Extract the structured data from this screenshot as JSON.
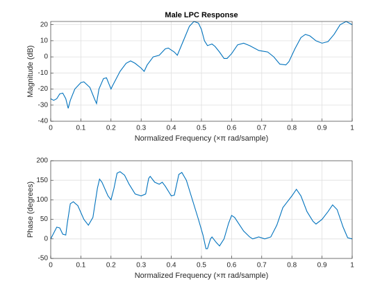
{
  "chart_data": [
    {
      "type": "line",
      "title": "Male LPC Response",
      "xlabel": "Normalized Frequency  (×π rad/sample)",
      "ylabel": "Magnitude (dB)",
      "x": [
        0,
        0.01,
        0.02,
        0.03,
        0.04,
        0.05,
        0.058,
        0.065,
        0.08,
        0.1,
        0.11,
        0.13,
        0.145,
        0.152,
        0.16,
        0.175,
        0.185,
        0.2,
        0.205,
        0.23,
        0.25,
        0.265,
        0.28,
        0.3,
        0.31,
        0.32,
        0.34,
        0.36,
        0.38,
        0.39,
        0.41,
        0.42,
        0.44,
        0.46,
        0.475,
        0.49,
        0.5,
        0.51,
        0.52,
        0.535,
        0.545,
        0.56,
        0.575,
        0.585,
        0.6,
        0.62,
        0.64,
        0.66,
        0.69,
        0.72,
        0.74,
        0.76,
        0.78,
        0.79,
        0.81,
        0.83,
        0.845,
        0.86,
        0.88,
        0.9,
        0.92,
        0.94,
        0.96,
        0.98,
        1.0
      ],
      "values": [
        -26,
        -27,
        -26,
        -23,
        -22.5,
        -26,
        -32,
        -27,
        -20,
        -16,
        -15.5,
        -19,
        -26,
        -29,
        -20,
        -13.5,
        -13,
        -20,
        -18,
        -9,
        -4,
        -2.5,
        -4,
        -7,
        -9,
        -5,
        0,
        1,
        5,
        5.5,
        3,
        1,
        10,
        19,
        22,
        21,
        17,
        10,
        7,
        8,
        6.5,
        3,
        -1,
        -1,
        2,
        7.5,
        8.5,
        7,
        4,
        3,
        0,
        -4.5,
        -5,
        -3,
        5,
        12,
        14,
        13,
        10,
        8.5,
        9.5,
        14,
        20,
        22,
        20
      ],
      "color": "#0072bd",
      "xlim": [
        0,
        1
      ],
      "ylim": [
        -40,
        22
      ],
      "xticks": [
        0,
        0.1,
        0.2,
        0.3,
        0.4,
        0.5,
        0.6,
        0.7,
        0.8,
        0.9,
        1
      ],
      "yticks": [
        -40,
        -30,
        -20,
        -10,
        0,
        10,
        20
      ],
      "grid": true
    },
    {
      "type": "line",
      "xlabel": "Normalized Frequency  (×π rad/sample)",
      "ylabel": "Phase (degrees)",
      "x": [
        0,
        0.01,
        0.02,
        0.03,
        0.04,
        0.05,
        0.055,
        0.065,
        0.075,
        0.09,
        0.11,
        0.125,
        0.14,
        0.155,
        0.162,
        0.17,
        0.19,
        0.2,
        0.21,
        0.22,
        0.23,
        0.245,
        0.26,
        0.28,
        0.3,
        0.315,
        0.325,
        0.33,
        0.345,
        0.36,
        0.37,
        0.38,
        0.4,
        0.41,
        0.425,
        0.435,
        0.45,
        0.47,
        0.49,
        0.505,
        0.515,
        0.52,
        0.53,
        0.535,
        0.55,
        0.56,
        0.575,
        0.59,
        0.6,
        0.61,
        0.64,
        0.66,
        0.67,
        0.69,
        0.71,
        0.73,
        0.75,
        0.77,
        0.785,
        0.8,
        0.815,
        0.83,
        0.85,
        0.87,
        0.88,
        0.9,
        0.92,
        0.935,
        0.95,
        0.97,
        0.985,
        1.0
      ],
      "values": [
        0,
        15,
        30,
        28,
        12,
        10,
        40,
        90,
        95,
        85,
        50,
        35,
        55,
        130,
        153,
        145,
        110,
        100,
        130,
        168,
        172,
        163,
        140,
        115,
        110,
        115,
        155,
        160,
        145,
        140,
        145,
        135,
        110,
        112,
        165,
        170,
        150,
        100,
        50,
        10,
        -25,
        -25,
        0,
        5,
        -10,
        -18,
        0,
        40,
        60,
        55,
        20,
        5,
        0,
        5,
        0,
        5,
        35,
        80,
        95,
        110,
        127,
        110,
        70,
        45,
        38,
        50,
        70,
        87,
        75,
        30,
        3,
        0
      ],
      "color": "#0072bd",
      "xlim": [
        0,
        1
      ],
      "ylim": [
        -50,
        200
      ],
      "xticks": [
        0,
        0.1,
        0.2,
        0.3,
        0.4,
        0.5,
        0.6,
        0.7,
        0.8,
        0.9,
        1
      ],
      "yticks": [
        -50,
        0,
        50,
        100,
        150,
        200
      ],
      "grid": true
    }
  ]
}
